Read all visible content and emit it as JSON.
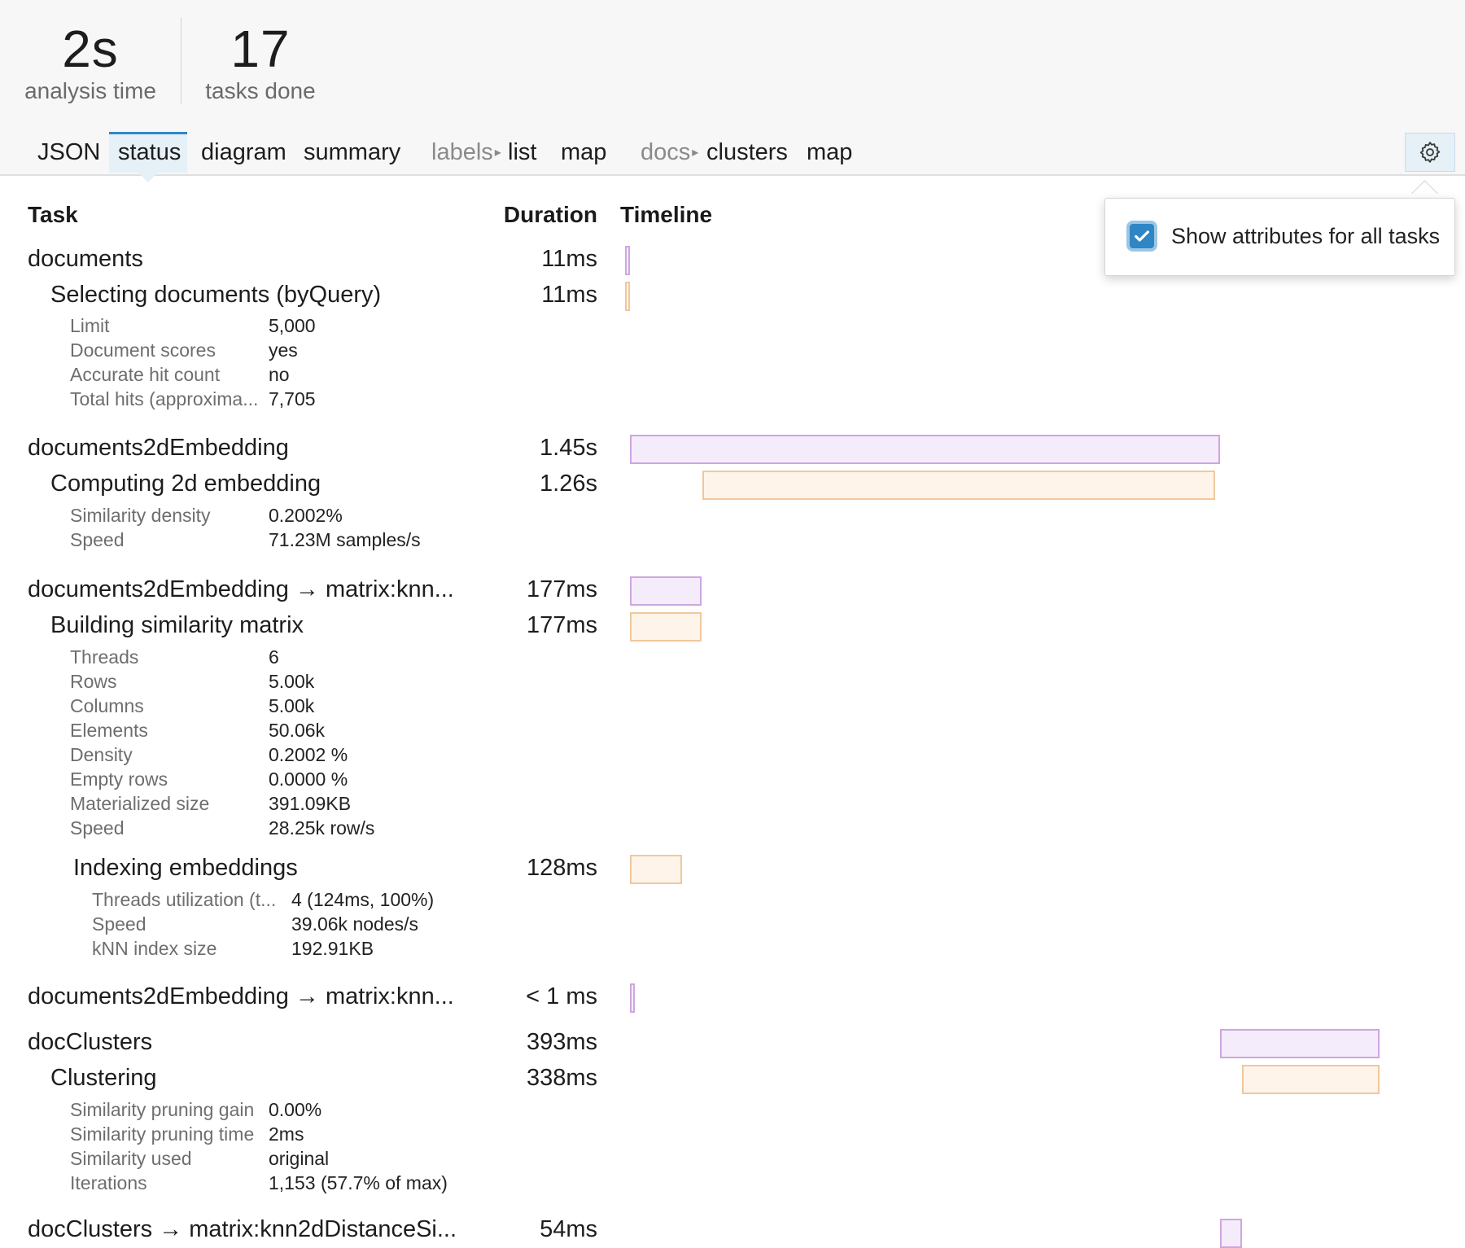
{
  "stats": {
    "time_value": "2s",
    "time_label": "analysis time",
    "tasks_value": "17",
    "tasks_label": "tasks done"
  },
  "tabs": {
    "json": "JSON",
    "status": "status",
    "diagram": "diagram",
    "summary": "summary",
    "labels_group": "labels",
    "labels_list": "list",
    "labels_map": "map",
    "docs_group": "docs",
    "docs_clusters": "clusters",
    "docs_map": "map",
    "group_arrow": "▸",
    "active": "status"
  },
  "settings": {
    "icon": "gear-icon",
    "checkbox_checked": true,
    "checkbox_label": "Show attributes for all tasks"
  },
  "table": {
    "col_task": "Task",
    "col_duration": "Duration",
    "col_timeline": "Timeline"
  },
  "tasks": [
    {
      "name": "documents",
      "duration": "11ms",
      "children": [
        {
          "name": "Selecting documents (byQuery)",
          "duration": "11ms",
          "attributes": [
            {
              "key": "Limit",
              "value": "5,000"
            },
            {
              "key": "Document scores",
              "value": "yes"
            },
            {
              "key": "Accurate hit count",
              "value": "no"
            },
            {
              "key": "Total hits (approxima...",
              "value": "7,705"
            }
          ]
        }
      ]
    },
    {
      "name": "documents2dEmbedding",
      "duration": "1.45s",
      "children": [
        {
          "name": "Computing 2d embedding",
          "duration": "1.26s",
          "attributes": [
            {
              "key": "Similarity density",
              "value": "0.2002%"
            },
            {
              "key": "Speed",
              "value": "71.23M samples/s"
            }
          ]
        }
      ]
    },
    {
      "name": "documents2dEmbedding → matrix:knn...",
      "duration": "177ms",
      "children": [
        {
          "name": "Building similarity matrix",
          "duration": "177ms",
          "attributes": [
            {
              "key": "Threads",
              "value": "6"
            },
            {
              "key": "Rows",
              "value": "5.00k"
            },
            {
              "key": "Columns",
              "value": "5.00k"
            },
            {
              "key": "Elements",
              "value": "50.06k"
            },
            {
              "key": "Density",
              "value": "0.2002 %"
            },
            {
              "key": "Empty rows",
              "value": "0.0000 %"
            },
            {
              "key": "Materialized size",
              "value": "391.09KB"
            },
            {
              "key": "Speed",
              "value": "28.25k row/s"
            }
          ],
          "children": [
            {
              "name": "Indexing embeddings",
              "duration": "128ms",
              "attributes": [
                {
                  "key": "Threads utilization (t...",
                  "value": "4 (124ms, 100%)"
                },
                {
                  "key": "Speed",
                  "value": "39.06k nodes/s"
                },
                {
                  "key": "kNN index size",
                  "value": "192.91KB"
                }
              ]
            }
          ]
        }
      ]
    },
    {
      "name": "documents2dEmbedding → matrix:knn...",
      "duration": "< 1 ms"
    },
    {
      "name": "docClusters",
      "duration": "393ms",
      "children": [
        {
          "name": "Clustering",
          "duration": "338ms",
          "attributes": [
            {
              "key": "Similarity pruning gain",
              "value": "0.00%"
            },
            {
              "key": "Similarity pruning time",
              "value": "2ms"
            },
            {
              "key": "Similarity used",
              "value": "original"
            },
            {
              "key": "Iterations",
              "value": "1,153 (57.7% of max)"
            }
          ]
        }
      ]
    },
    {
      "name": "docClusters → matrix:knn2dDistanceSi...",
      "duration": "54ms"
    }
  ],
  "timeline": {
    "unit": "seconds",
    "start": 0,
    "end": 2,
    "bars": [
      {
        "task": "documents",
        "kind": "task",
        "start": 0,
        "duration": 0.011
      },
      {
        "task": "Selecting documents (byQuery)",
        "kind": "step",
        "start": 0,
        "duration": 0.011
      },
      {
        "task": "documents2dEmbedding",
        "kind": "task",
        "start": 0.011,
        "duration": 1.45
      },
      {
        "task": "Computing 2d embedding",
        "kind": "step",
        "start": 0.19,
        "duration": 1.26
      },
      {
        "task": "documents2dEmbedding → matrix:knn...",
        "kind": "task",
        "start": 0.011,
        "duration": 0.177
      },
      {
        "task": "Building similarity matrix",
        "kind": "step",
        "start": 0.011,
        "duration": 0.177
      },
      {
        "task": "Indexing embeddings",
        "kind": "step",
        "start": 0.011,
        "duration": 0.128
      },
      {
        "task": "documents2dEmbedding → matrix:knn...",
        "kind": "task",
        "start": 0.011,
        "duration": 0.001
      },
      {
        "task": "docClusters",
        "kind": "task",
        "start": 1.461,
        "duration": 0.393
      },
      {
        "task": "Clustering",
        "kind": "step",
        "start": 1.516,
        "duration": 0.338
      },
      {
        "task": "docClusters → matrix:knn2dDistanceSi...",
        "kind": "task",
        "start": 1.461,
        "duration": 0.054
      }
    ]
  },
  "colors": {
    "accent": "#2f86c4",
    "task_bar_fill": "#f5ecfb",
    "task_bar_border": "#cfa6e0",
    "step_bar_fill": "#fef4ea",
    "step_bar_border": "#f0c89c"
  }
}
